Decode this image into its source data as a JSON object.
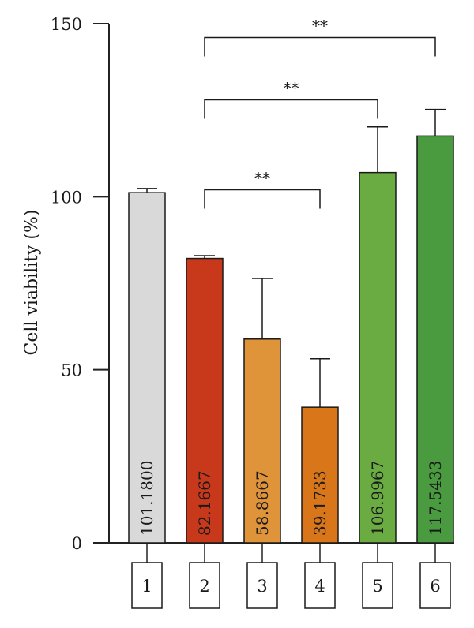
{
  "chart_data": {
    "type": "bar",
    "title": "",
    "xlabel": "",
    "ylabel": "Cell viability (%)",
    "ylim": [
      0,
      150
    ],
    "yticks": [
      0,
      50,
      100,
      150
    ],
    "grid": false,
    "categories": [
      "1",
      "2",
      "3",
      "4",
      "5",
      "6"
    ],
    "values": [
      101.18,
      82.1667,
      58.8667,
      39.1733,
      106.9967,
      117.5433
    ],
    "value_labels": [
      "101.1800",
      "82.1667",
      "58.8667",
      "39.1733",
      "106.9967",
      "117.5433"
    ],
    "error_upper": [
      1.2,
      0.8,
      17.5,
      14.0,
      13.2,
      7.7
    ],
    "bar_colors": [
      "#d9d9d9",
      "#c8391b",
      "#e0943a",
      "#d9761a",
      "#6aab42",
      "#4a9a3f"
    ],
    "significance": [
      {
        "from": 2,
        "to": 4,
        "level": 102,
        "label": "**"
      },
      {
        "from": 2,
        "to": 5,
        "level": 128,
        "label": "**"
      },
      {
        "from": 2,
        "to": 6,
        "level": 146,
        "label": "**"
      }
    ]
  }
}
